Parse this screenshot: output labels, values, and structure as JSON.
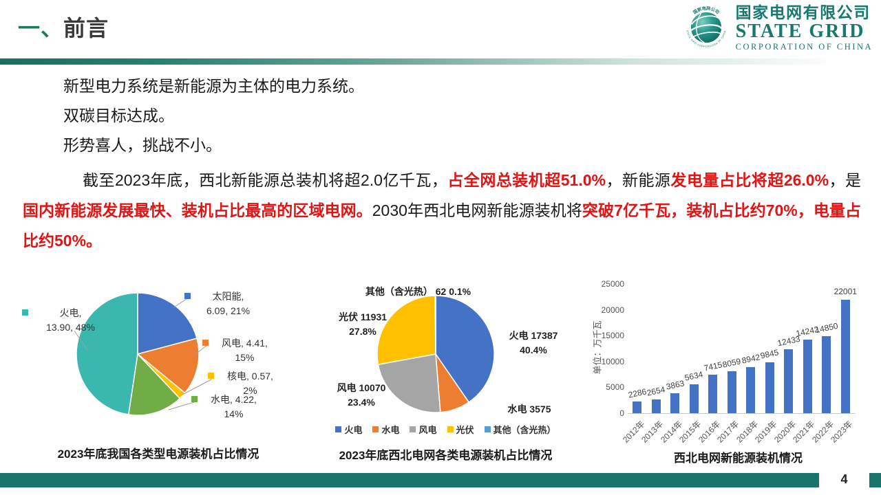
{
  "header": {
    "section_no": "一、",
    "title": "前言"
  },
  "logo": {
    "company_cn": "国家电网有限公司",
    "company_en": "STATE GRID",
    "company_sub": "CORPORATION OF CHINA",
    "ring_top": "国家电网公司",
    "ring_bottom": "STATE GRID CORPORATION OF CHINA",
    "brand_color": "#17796e"
  },
  "body": {
    "p1": "新型电力系统是新能源为主体的电力系统。",
    "p2": "双碳目标达成。",
    "p3": "形势喜人，挑战不小。",
    "p4_segments": [
      {
        "t": "截至2023年底，西北新能源总装机将超2.0亿千瓦，",
        "red": false
      },
      {
        "t": "占全网总装机超51.0%",
        "red": true
      },
      {
        "t": "，新能源",
        "red": false
      },
      {
        "t": "发电量占比将超26.0%",
        "red": true
      },
      {
        "t": "，是",
        "red": false
      },
      {
        "t": "国内新能源发展最快、装机占比最高的区域电网。",
        "red": true
      },
      {
        "t": "2030年西北电网新能源装机将",
        "red": false
      },
      {
        "t": "突破7亿千瓦，装机占比约70%，电量占比约50%。",
        "red": true
      }
    ]
  },
  "footer": {
    "page": "4"
  },
  "chart_data": [
    {
      "type": "pie",
      "title": "2023年底我国各类型电源装机占比情况",
      "labels": [
        "太阳能",
        "风电",
        "核电",
        "水电",
        "火电"
      ],
      "values": [
        6.09,
        4.41,
        0.57,
        4.22,
        13.9
      ],
      "percents": [
        21,
        15,
        2,
        14,
        48
      ],
      "colors": [
        "#4472c4",
        "#ed7d31",
        "#ffc000",
        "#70ad47",
        "#3ab7ae"
      ],
      "callouts": [
        "太阳能,\n6.09, 21%",
        "风电, 4.41,\n15%",
        "核电, 0.57,\n2%",
        "水电, 4.22,\n14%",
        "火电,\n13.90, 48%"
      ],
      "legend_position": "callouts"
    },
    {
      "type": "pie",
      "title": "2023年底西北电网各类电源装机占比情况",
      "labels": [
        "火电",
        "水电",
        "风电",
        "光伏",
        "其他（含光热）"
      ],
      "values": [
        17387,
        3575,
        10070,
        11931,
        62
      ],
      "percents": [
        40.4,
        null,
        23.4,
        27.8,
        0.1
      ],
      "colors": [
        "#4472c4",
        "#ed7d31",
        "#a5a5a5",
        "#ffc000",
        "#5b9bd5"
      ],
      "callouts": [
        "火电 17387\n40.4%",
        "水电 3575",
        "风电 10070\n23.4%",
        "光伏 11931\n27.8%",
        "其他（含光热） 62  0.1%"
      ],
      "legend": [
        "火电",
        "水电",
        "风电",
        "光伏",
        "其他（含光热）"
      ],
      "legend_position": "bottom"
    },
    {
      "type": "bar",
      "title": "西北电网新能源装机情况",
      "ylabel": "单位：万千瓦",
      "categories": [
        "2012年",
        "2013年",
        "2014年",
        "2015年",
        "2016年",
        "2017年",
        "2018年",
        "2019年",
        "2020年",
        "2021年",
        "2022年",
        "2023年"
      ],
      "values": [
        2286,
        2654,
        3863,
        5634,
        7415,
        8059,
        8942,
        9845,
        12433,
        14242,
        14850,
        22001
      ],
      "yticks": [
        0,
        5000,
        10000,
        15000,
        20000,
        25000
      ],
      "ylim": [
        0,
        25000
      ],
      "bar_color": "#4472c4",
      "grid": false,
      "legend_position": "none"
    }
  ]
}
